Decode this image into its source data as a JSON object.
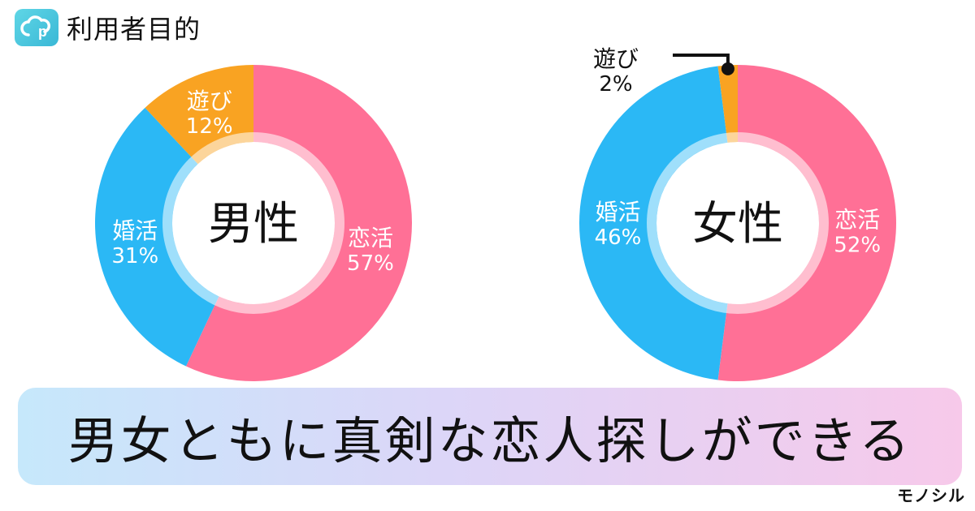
{
  "header": {
    "title": "利用者目的"
  },
  "chart_data": [
    {
      "type": "pie",
      "title": "男性",
      "slices": [
        {
          "label": "恋活",
          "value": 57,
          "color": "#ff7096"
        },
        {
          "label": "婚活",
          "value": 31,
          "color": "#2bb8f5"
        },
        {
          "label": "遊び",
          "value": 12,
          "color": "#f9a322"
        }
      ]
    },
    {
      "type": "pie",
      "title": "女性",
      "slices": [
        {
          "label": "恋活",
          "value": 52,
          "color": "#ff7096"
        },
        {
          "label": "婚活",
          "value": 46,
          "color": "#2bb8f5"
        },
        {
          "label": "遊び",
          "value": 2,
          "color": "#f9a322"
        }
      ]
    }
  ],
  "banner": {
    "text": "男女ともに真剣な恋人探しができる"
  },
  "brand": {
    "name": "モノシル"
  }
}
